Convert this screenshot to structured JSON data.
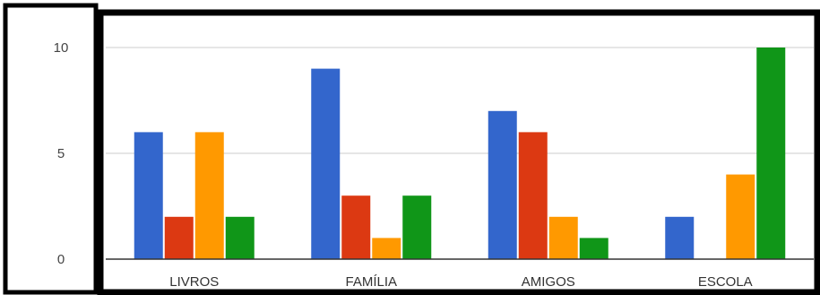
{
  "chart_data": {
    "type": "bar",
    "categories": [
      "LIVROS",
      "FAMÍLIA",
      "AMIGOS",
      "ESCOLA"
    ],
    "series": [
      {
        "color": "#3366cc",
        "values": [
          6,
          9,
          7,
          2
        ]
      },
      {
        "color": "#dc3912",
        "values": [
          2,
          3,
          6,
          0
        ]
      },
      {
        "color": "#ff9900",
        "values": [
          6,
          1,
          2,
          4
        ]
      },
      {
        "color": "#109618",
        "values": [
          2,
          3,
          1,
          10
        ]
      }
    ],
    "ylim": [
      0,
      10
    ],
    "yticks": [
      "0",
      "5",
      "10"
    ],
    "grid": true,
    "title": "",
    "xlabel": "",
    "ylabel": ""
  }
}
